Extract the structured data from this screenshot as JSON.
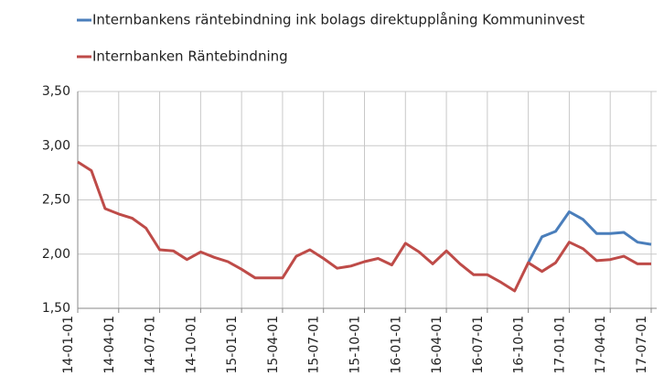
{
  "chart_data": {
    "type": "line",
    "categories": [
      "14-01-01",
      null,
      null,
      "14-04-01",
      null,
      null,
      "14-07-01",
      null,
      null,
      "14-10-01",
      null,
      null,
      "15-01-01",
      null,
      null,
      "15-04-01",
      null,
      null,
      "15-07-01",
      null,
      null,
      "15-10-01",
      null,
      null,
      "16-01-01",
      null,
      null,
      "16-04-01",
      null,
      null,
      "16-07-01",
      null,
      null,
      "16-10-01",
      null,
      null,
      "17-01-01",
      null,
      null,
      "17-04-01",
      null,
      null,
      "17-07-01"
    ],
    "series": [
      {
        "name": "Internbankens räntebindning ink bolags direktupplåning  Kommuninvest",
        "color": "#4a7ebb",
        "values": [
          null,
          null,
          null,
          null,
          null,
          null,
          null,
          null,
          null,
          null,
          null,
          null,
          null,
          null,
          null,
          null,
          null,
          null,
          null,
          null,
          null,
          null,
          null,
          null,
          null,
          null,
          null,
          null,
          null,
          null,
          null,
          null,
          null,
          1.92,
          2.16,
          2.21,
          2.39,
          2.32,
          2.19,
          2.19,
          2.2,
          2.11,
          2.09
        ]
      },
      {
        "name": "Internbanken Räntebindning",
        "color": "#be4b48",
        "values": [
          2.85,
          2.77,
          2.42,
          2.37,
          2.33,
          2.24,
          2.04,
          2.03,
          1.95,
          2.02,
          1.97,
          1.93,
          1.86,
          1.78,
          1.78,
          1.78,
          1.98,
          2.04,
          1.96,
          1.87,
          1.89,
          1.93,
          1.96,
          1.9,
          2.1,
          2.02,
          1.91,
          2.03,
          1.91,
          1.81,
          1.81,
          1.74,
          1.66,
          1.92,
          1.84,
          1.92,
          2.11,
          2.05,
          1.94,
          1.95,
          1.98,
          1.91,
          1.91
        ]
      }
    ],
    "ylim": [
      1.5,
      3.5
    ],
    "yticks": [
      {
        "value": 1.5,
        "label": "1,50"
      },
      {
        "value": 2.0,
        "label": "2,00"
      },
      {
        "value": 2.5,
        "label": "2,50"
      },
      {
        "value": 3.0,
        "label": "3,00"
      },
      {
        "value": 3.5,
        "label": "3,50"
      }
    ],
    "grid": true
  }
}
